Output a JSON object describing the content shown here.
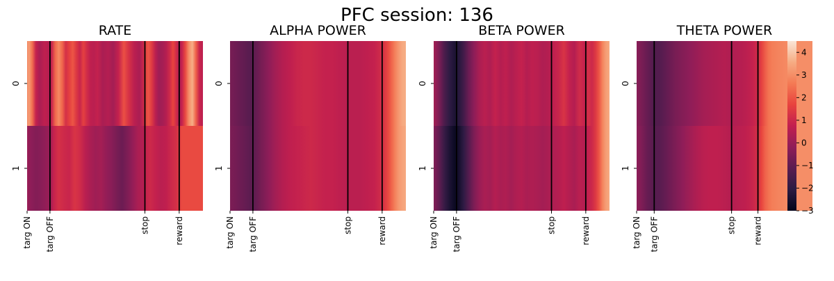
{
  "figure": {
    "title": "PFC session: 136"
  },
  "colormap": {
    "stops": [
      "#03051a",
      "#2b1b42",
      "#5a1c50",
      "#8f1d58",
      "#c21f4f",
      "#e8433e",
      "#f47a54",
      "#f6ac83",
      "#fae5d6"
    ]
  },
  "colorbar": {
    "min": -3,
    "max": 4.5,
    "ticks": [
      -3,
      -2,
      -1,
      0,
      1,
      2,
      3,
      4
    ]
  },
  "event_marker_color": "#000000",
  "chart_data": [
    {
      "type": "heatmap",
      "title": "RATE",
      "y_categories": [
        "0",
        "1"
      ],
      "x_range": [
        0,
        100
      ],
      "x_ticks": [
        {
          "label": "targ ON",
          "x": 0
        },
        {
          "label": "targ OFF",
          "x": 13
        },
        {
          "label": "stop",
          "x": 67
        },
        {
          "label": "reward",
          "x": 86.5
        }
      ],
      "event_lines": [
        13,
        67,
        86.5
      ],
      "rows": [
        {
          "x": [
            0,
            1,
            3,
            5,
            7,
            10,
            13,
            14,
            16,
            18,
            20,
            22,
            24,
            26,
            28,
            30,
            32,
            34,
            36,
            38,
            40,
            43,
            46,
            49,
            52,
            55,
            58,
            61,
            64,
            66,
            67,
            69,
            71,
            73,
            75,
            77,
            79,
            81,
            83,
            85,
            86.5,
            88,
            90,
            92,
            94,
            96,
            98,
            100
          ],
          "v": [
            2.8,
            3.3,
            2.4,
            0.8,
            0.3,
            0.7,
            0.5,
            0.9,
            2.3,
            2.9,
            2.3,
            1.2,
            1.6,
            2.0,
            1.4,
            0.9,
            1.6,
            1.1,
            0.7,
            0.6,
            0.8,
            0.3,
            0.5,
            0.2,
            0.8,
            1.9,
            1.2,
            0.6,
            0.3,
            0.9,
            1.6,
            2.0,
            1.4,
            0.6,
            0.1,
            0.2,
            0.5,
            1.0,
            1.7,
            1.0,
            0.4,
            0.8,
            1.8,
            3.0,
            3.6,
            2.2,
            0.9,
            0.6
          ]
        },
        {
          "x": [
            0,
            2,
            5,
            8,
            11,
            13,
            15,
            18,
            21,
            24,
            27,
            30,
            33,
            36,
            39,
            42,
            45,
            48,
            51,
            54,
            57,
            60,
            63,
            66,
            67,
            70,
            73,
            76,
            79,
            82,
            85,
            86.5,
            88,
            92,
            96,
            100
          ],
          "v": [
            0.0,
            -0.2,
            -0.4,
            -0.3,
            -0.1,
            0.0,
            0.8,
            1.2,
            1.0,
            0.9,
            1.3,
            1.1,
            0.6,
            0.3,
            0.1,
            0.2,
            -0.1,
            -0.3,
            -0.6,
            -0.8,
            -0.5,
            -0.1,
            0.3,
            0.5,
            0.8,
            1.0,
            0.8,
            0.6,
            0.7,
            1.0,
            1.2,
            1.5,
            1.8,
            1.8,
            1.8,
            1.8
          ]
        }
      ]
    },
    {
      "type": "heatmap",
      "title": "ALPHA POWER",
      "y_categories": [
        "0",
        "1"
      ],
      "x_range": [
        0,
        100
      ],
      "x_ticks": [
        {
          "label": "targ ON",
          "x": 0
        },
        {
          "label": "targ OFF",
          "x": 13
        },
        {
          "label": "stop",
          "x": 67
        },
        {
          "label": "reward",
          "x": 86.5
        }
      ],
      "event_lines": [
        13,
        67,
        86.5
      ],
      "rows": [
        {
          "x": [
            0,
            4,
            8,
            12,
            14,
            18,
            22,
            26,
            30,
            34,
            38,
            42,
            46,
            50,
            54,
            58,
            62,
            66,
            70,
            74,
            78,
            82,
            86,
            88,
            90,
            92,
            94,
            96,
            98,
            100
          ],
          "v": [
            -0.6,
            -0.8,
            -1.0,
            -1.2,
            -1.0,
            -0.6,
            -0.2,
            0.2,
            0.5,
            0.7,
            0.9,
            1.0,
            1.0,
            0.9,
            0.8,
            0.8,
            0.7,
            0.6,
            0.6,
            0.6,
            0.7,
            0.8,
            1.1,
            1.4,
            1.8,
            2.3,
            2.8,
            3.2,
            3.5,
            3.6
          ]
        },
        {
          "x": [
            0,
            4,
            8,
            12,
            14,
            18,
            22,
            26,
            30,
            34,
            38,
            42,
            46,
            50,
            54,
            58,
            62,
            66,
            70,
            74,
            78,
            82,
            86,
            88,
            90,
            92,
            94,
            96,
            98,
            100
          ],
          "v": [
            -0.5,
            -0.7,
            -0.9,
            -1.1,
            -1.0,
            -0.6,
            -0.2,
            0.2,
            0.5,
            0.7,
            0.8,
            0.9,
            1.0,
            0.9,
            0.8,
            0.8,
            0.7,
            0.6,
            0.6,
            0.6,
            0.7,
            0.8,
            1.1,
            1.4,
            1.8,
            2.3,
            2.8,
            3.2,
            3.4,
            3.5
          ]
        }
      ]
    },
    {
      "type": "heatmap",
      "title": "BETA POWER",
      "y_categories": [
        "0",
        "1"
      ],
      "x_range": [
        0,
        100
      ],
      "x_ticks": [
        {
          "label": "targ ON",
          "x": 0
        },
        {
          "label": "targ OFF",
          "x": 13
        },
        {
          "label": "stop",
          "x": 67
        },
        {
          "label": "reward",
          "x": 86.5
        }
      ],
      "event_lines": [
        13,
        67,
        86.5
      ],
      "rows": [
        {
          "x": [
            0,
            3,
            6,
            9,
            12,
            14,
            17,
            20,
            23,
            26,
            29,
            32,
            35,
            38,
            41,
            44,
            47,
            50,
            53,
            56,
            59,
            62,
            65,
            68,
            71,
            74,
            77,
            80,
            83,
            86,
            88,
            90,
            92,
            94,
            96,
            98,
            100
          ],
          "v": [
            0.2,
            -0.5,
            -1.4,
            -2.0,
            -2.4,
            -2.2,
            -1.6,
            -0.8,
            -0.2,
            0.3,
            0.6,
            0.4,
            0.8,
            0.5,
            0.7,
            0.4,
            0.6,
            0.8,
            0.5,
            0.7,
            0.6,
            0.4,
            0.5,
            0.7,
            0.9,
            1.3,
            0.8,
            0.5,
            1.1,
            0.8,
            1.2,
            1.0,
            1.4,
            2.0,
            2.8,
            3.3,
            3.5
          ]
        },
        {
          "x": [
            0,
            3,
            6,
            9,
            12,
            14,
            17,
            20,
            23,
            26,
            29,
            32,
            35,
            38,
            41,
            44,
            47,
            50,
            53,
            56,
            59,
            62,
            65,
            68,
            71,
            74,
            77,
            80,
            83,
            86,
            88,
            90,
            92,
            94,
            96,
            98,
            100
          ],
          "v": [
            -0.4,
            -1.0,
            -1.8,
            -2.4,
            -2.8,
            -2.6,
            -2.0,
            -1.2,
            -0.5,
            0.0,
            0.3,
            0.2,
            0.5,
            0.3,
            0.4,
            0.2,
            0.4,
            0.5,
            0.3,
            0.4,
            0.3,
            0.2,
            0.3,
            0.4,
            0.5,
            0.7,
            0.5,
            0.3,
            0.6,
            0.5,
            0.8,
            1.0,
            1.4,
            2.0,
            2.8,
            3.3,
            3.5
          ]
        }
      ]
    },
    {
      "type": "heatmap",
      "title": "THETA POWER",
      "y_categories": [
        "0",
        "1"
      ],
      "x_range": [
        0,
        100
      ],
      "x_ticks": [
        {
          "label": "targ ON",
          "x": 0
        },
        {
          "label": "targ OFF",
          "x": 10
        },
        {
          "label": "stop",
          "x": 54
        },
        {
          "label": "reward",
          "x": 69
        }
      ],
      "event_lines": [
        10,
        54,
        69
      ],
      "rows": [
        {
          "x": [
            0,
            3,
            6,
            9,
            11,
            14,
            18,
            22,
            26,
            30,
            34,
            38,
            42,
            46,
            50,
            54,
            58,
            62,
            66,
            69,
            71,
            73,
            75,
            77,
            80,
            85,
            90,
            95,
            100
          ],
          "v": [
            -0.3,
            -0.6,
            -0.9,
            -1.2,
            -1.3,
            -1.2,
            -0.9,
            -0.6,
            -0.4,
            -0.2,
            0.0,
            0.2,
            0.3,
            0.4,
            0.5,
            0.4,
            0.5,
            0.6,
            0.8,
            1.1,
            1.6,
            2.1,
            2.5,
            2.7,
            2.8,
            2.9,
            3.0,
            3.0,
            3.0
          ]
        },
        {
          "x": [
            0,
            3,
            6,
            9,
            11,
            14,
            18,
            22,
            26,
            30,
            34,
            38,
            42,
            46,
            50,
            54,
            58,
            62,
            66,
            69,
            71,
            73,
            75,
            77,
            80,
            85,
            90,
            95,
            100
          ],
          "v": [
            -0.2,
            -0.5,
            -0.9,
            -1.1,
            -1.2,
            -1.1,
            -0.8,
            -0.5,
            -0.2,
            0.1,
            0.4,
            0.6,
            0.7,
            0.7,
            0.6,
            0.5,
            0.6,
            0.7,
            0.9,
            1.2,
            1.7,
            2.2,
            2.5,
            2.7,
            2.8,
            2.9,
            3.0,
            3.0,
            3.0
          ]
        }
      ]
    }
  ]
}
